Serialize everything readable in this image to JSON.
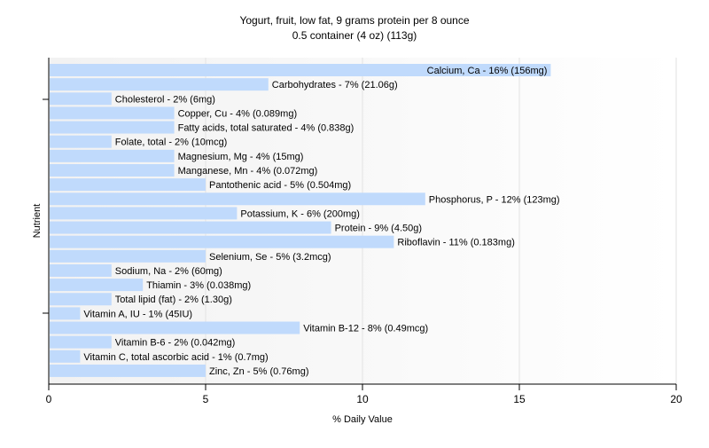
{
  "chart_data": {
    "type": "bar",
    "orientation": "horizontal",
    "title": "Yogurt, fruit, low fat, 9 grams protein per 8 ounce",
    "subtitle": "0.5 container (4 oz) (113g)",
    "xlabel": "% Daily Value",
    "ylabel": "Nutrient",
    "xlim": [
      0,
      20
    ],
    "xticks": [
      "0",
      "5",
      "10",
      "15",
      "20"
    ],
    "grid": true,
    "bar_color": "#c0dafc",
    "categories": [
      "Calcium, Ca",
      "Carbohydrates",
      "Cholesterol",
      "Copper, Cu",
      "Fatty acids, total saturated",
      "Folate, total",
      "Magnesium, Mg",
      "Manganese, Mn",
      "Pantothenic acid",
      "Phosphorus, P",
      "Potassium, K",
      "Protein",
      "Riboflavin",
      "Selenium, Se",
      "Sodium, Na",
      "Thiamin",
      "Total lipid (fat)",
      "Vitamin A, IU",
      "Vitamin B-12",
      "Vitamin B-6",
      "Vitamin C, total ascorbic acid",
      "Zinc, Zn"
    ],
    "values": [
      16,
      7,
      2,
      4,
      4,
      2,
      4,
      4,
      5,
      12,
      6,
      9,
      11,
      5,
      2,
      3,
      2,
      1,
      8,
      2,
      1,
      5
    ],
    "labels": [
      "Calcium, Ca - 16% (156mg)",
      "Carbohydrates - 7% (21.06g)",
      "Cholesterol - 2% (6mg)",
      "Copper, Cu - 4% (0.089mg)",
      "Fatty acids, total saturated - 4% (0.838g)",
      "Folate, total - 2% (10mcg)",
      "Magnesium, Mg - 4% (15mg)",
      "Manganese, Mn - 4% (0.072mg)",
      "Pantothenic acid - 5% (0.504mg)",
      "Phosphorus, P - 12% (123mg)",
      "Potassium, K - 6% (200mg)",
      "Protein - 9% (4.50g)",
      "Riboflavin - 11% (0.183mg)",
      "Selenium, Se - 5% (3.2mcg)",
      "Sodium, Na - 2% (60mg)",
      "Thiamin - 3% (0.038mg)",
      "Total lipid (fat) - 2% (1.30g)",
      "Vitamin A, IU - 1% (45IU)",
      "Vitamin B-12 - 8% (0.49mcg)",
      "Vitamin B-6 - 2% (0.042mg)",
      "Vitamin C, total ascorbic acid - 1% (0.7mg)",
      "Zinc, Zn - 5% (0.76mg)"
    ]
  }
}
